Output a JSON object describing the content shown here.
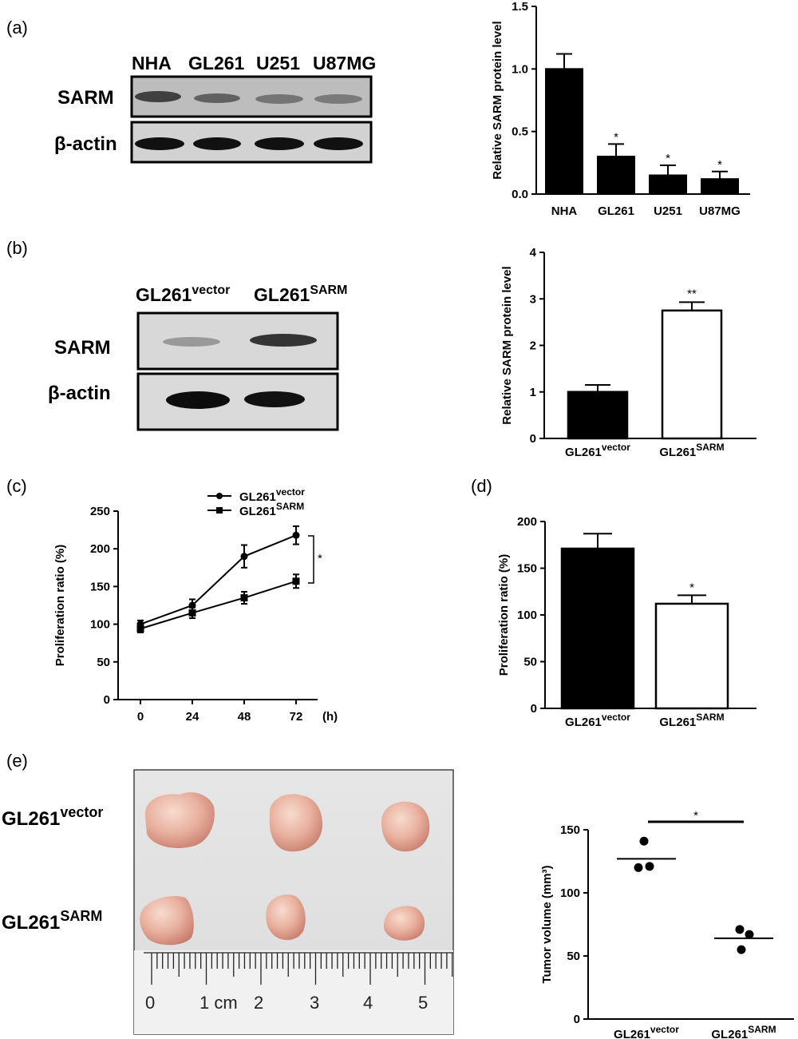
{
  "panels": {
    "a": "(a)",
    "b": "(b)",
    "c": "(c)",
    "d": "(d)",
    "e": "(e)"
  },
  "blots": {
    "a": {
      "lanes": [
        "NHA",
        "GL261",
        "U251",
        "U87MG"
      ],
      "rows": [
        "SARM",
        "β-actin"
      ]
    },
    "b": {
      "lanes": [
        {
          "base": "GL261",
          "sup": "vector"
        },
        {
          "base": "GL261",
          "sup": "SARM"
        }
      ],
      "rows": [
        "SARM",
        "β-actin"
      ]
    }
  },
  "photo": {
    "rows": [
      {
        "base": "GL261",
        "sup": "vector"
      },
      {
        "base": "GL261",
        "sup": "SARM"
      }
    ],
    "ruler_labels": [
      "0",
      "1 cm",
      "2",
      "3",
      "4",
      "5"
    ]
  },
  "chart_data": [
    {
      "id": "a",
      "type": "bar",
      "categories": [
        "NHA",
        "GL261",
        "U251",
        "U87MG"
      ],
      "values": [
        1.0,
        0.3,
        0.15,
        0.12
      ],
      "errors": [
        0.12,
        0.1,
        0.08,
        0.06
      ],
      "significance": [
        "",
        "*",
        "*",
        "*"
      ],
      "ylabel": "Relative SARM protein level",
      "ylim": [
        0,
        1.5
      ],
      "yticks": [
        "0.0",
        "0.5",
        "1.0",
        "1.5"
      ],
      "colors": [
        "#000000",
        "#000000",
        "#000000",
        "#000000"
      ]
    },
    {
      "id": "b",
      "type": "bar",
      "categories": [
        {
          "base": "GL261",
          "sup": "vector"
        },
        {
          "base": "GL261",
          "sup": "SARM"
        }
      ],
      "values": [
        1.0,
        2.75
      ],
      "errors": [
        0.15,
        0.18
      ],
      "significance": [
        "",
        "**"
      ],
      "ylabel": "Relative SARM protein level",
      "ylim": [
        0,
        4
      ],
      "yticks": [
        "0",
        "1",
        "2",
        "3",
        "4"
      ],
      "colors": [
        "#000000",
        "#ffffff"
      ]
    },
    {
      "id": "c",
      "type": "line",
      "x": [
        0,
        24,
        48,
        72
      ],
      "xticks": [
        "0",
        "24",
        "48",
        "72"
      ],
      "xunit": "(h)",
      "series": [
        {
          "name": {
            "base": "GL261",
            "sup": "vector"
          },
          "marker": "circle",
          "values": [
            100,
            125,
            190,
            218
          ],
          "errors": [
            5,
            8,
            15,
            12
          ]
        },
        {
          "name": {
            "base": "GL261",
            "sup": "SARM"
          },
          "marker": "square",
          "values": [
            94,
            115,
            135,
            157
          ],
          "errors": [
            5,
            7,
            8,
            9
          ]
        }
      ],
      "significance": "*",
      "ylabel": "Proliferation ratio (%)",
      "ylim": [
        0,
        250
      ],
      "yticks": [
        "0",
        "50",
        "100",
        "150",
        "200",
        "250"
      ],
      "legend": "top"
    },
    {
      "id": "d",
      "type": "bar",
      "categories": [
        {
          "base": "GL261",
          "sup": "vector"
        },
        {
          "base": "GL261",
          "sup": "SARM"
        }
      ],
      "values": [
        171,
        112
      ],
      "errors": [
        16,
        9
      ],
      "significance": [
        "",
        "*"
      ],
      "ylabel": "Proliferation ratio (%)",
      "ylim": [
        0,
        200
      ],
      "yticks": [
        "0",
        "50",
        "100",
        "150",
        "200"
      ],
      "colors": [
        "#000000",
        "#ffffff"
      ]
    },
    {
      "id": "e",
      "type": "scatter",
      "categories": [
        {
          "base": "GL261",
          "sup": "vector"
        },
        {
          "base": "GL261",
          "sup": "SARM"
        }
      ],
      "points": [
        [
          141,
          120,
          121
        ],
        [
          71,
          55,
          67
        ]
      ],
      "means": [
        127,
        64
      ],
      "significance": "*",
      "ylabel": "Tumor volume (mm³)",
      "ylim": [
        0,
        150
      ],
      "yticks": [
        "0",
        "50",
        "100",
        "150"
      ]
    }
  ]
}
